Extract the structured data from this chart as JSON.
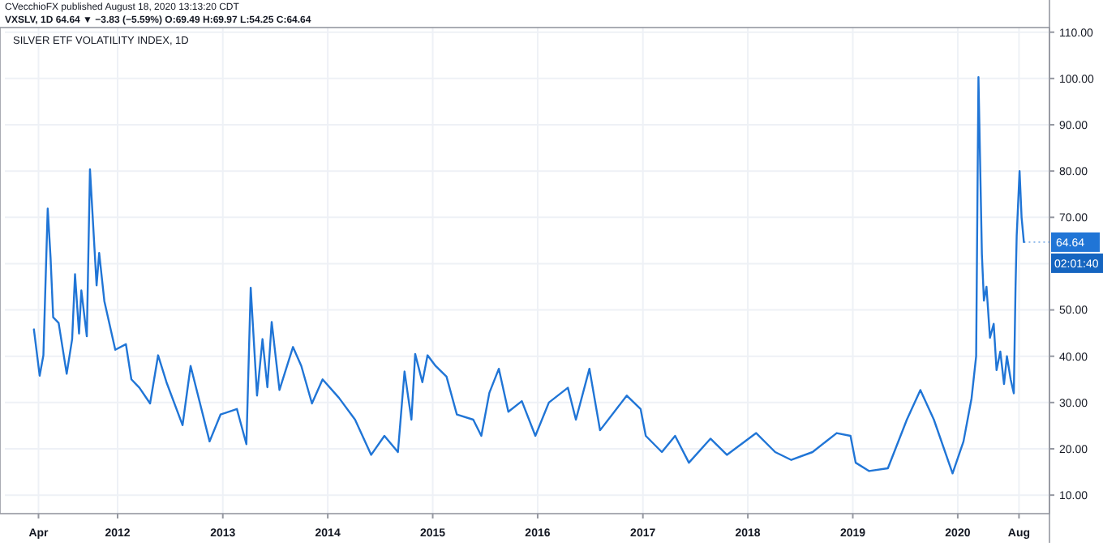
{
  "chart_data": {
    "type": "line",
    "title": "SILVER ETF VOLATILITY INDEX, 1D",
    "subtitle": "CVecchioFX published August 18, 2020 13:13:20 CDT",
    "annotations": [
      "VXSLV, 1D 64.64 ▼ −3.83 (−5.59%) O:69.49 H:69.97 L:54.25 C:64.64",
      {
        "text": "64.64",
        "x": "2020-08-18",
        "y": 64.64
      },
      "02:01:40"
    ],
    "x": [
      "2011-03-16",
      "2011-04-05",
      "2011-04-18",
      "2011-05-03",
      "2011-05-13",
      "2011-05-22",
      "2011-06-10",
      "2011-07-08",
      "2011-07-27",
      "2011-08-06",
      "2011-08-20",
      "2011-08-28",
      "2011-09-16",
      "2011-09-27",
      "2011-10-20",
      "2011-10-29",
      "2011-11-16",
      "2011-12-24",
      "2012-01-30",
      "2012-02-18",
      "2012-03-17",
      "2012-04-23",
      "2012-05-21",
      "2012-06-19",
      "2012-08-14",
      "2012-09-11",
      "2012-11-16",
      "2012-12-24",
      "2013-02-19",
      "2013-03-24",
      "2013-04-08",
      "2013-04-30",
      "2013-05-19",
      "2013-06-05",
      "2013-06-20",
      "2013-07-17",
      "2013-09-02",
      "2013-10-01",
      "2013-11-07",
      "2013-12-14",
      "2014-02-09",
      "2014-04-06",
      "2014-06-01",
      "2014-07-17",
      "2014-09-02",
      "2014-09-25",
      "2014-10-19",
      "2014-11-01",
      "2014-11-26",
      "2014-12-14",
      "2015-01-11",
      "2015-02-18",
      "2015-03-26",
      "2015-05-22",
      "2015-06-19",
      "2015-07-17",
      "2015-08-19",
      "2015-09-21",
      "2015-11-07",
      "2015-12-24",
      "2016-02-09",
      "2016-04-15",
      "2016-05-13",
      "2016-06-29",
      "2016-08-05",
      "2016-11-06",
      "2016-12-24",
      "2017-01-11",
      "2017-03-08",
      "2017-04-23",
      "2017-06-10",
      "2017-08-24",
      "2017-10-20",
      "2018-01-30",
      "2018-04-06",
      "2018-06-01",
      "2018-08-14",
      "2018-11-06",
      "2018-12-24",
      "2019-01-11",
      "2019-02-27",
      "2019-05-03",
      "2019-07-08",
      "2019-08-24",
      "2019-10-10",
      "2019-12-14",
      "2020-01-21",
      "2020-02-18",
      "2020-03-05",
      "2020-03-13",
      "2020-03-25",
      "2020-04-01",
      "2020-04-10",
      "2020-04-22",
      "2020-05-05",
      "2020-05-15",
      "2020-05-28",
      "2020-06-10",
      "2020-06-20",
      "2020-07-03",
      "2020-07-14",
      "2020-07-20",
      "2020-07-24",
      "2020-08-03",
      "2020-08-10",
      "2020-08-18"
    ],
    "series": [
      {
        "color": "#2075d6",
        "values": [
          45.8,
          35.8,
          40.2,
          71.9,
          61.2,
          48.4,
          47.2,
          36.2,
          43.7,
          57.7,
          44.9,
          54.2,
          44.3,
          80.4,
          55.3,
          62.3,
          51.9,
          41.4,
          42.6,
          35,
          33.2,
          29.8,
          40.2,
          34.4,
          25.1,
          37.9,
          21.6,
          27.4,
          28.6,
          21,
          54.8,
          31.5,
          43.7,
          33.3,
          47.4,
          32.7,
          42,
          37.9,
          29.8,
          35,
          31,
          26.3,
          18.7,
          22.8,
          19.3,
          36.7,
          26.3,
          40.5,
          34.4,
          40.2,
          37.9,
          35.6,
          27.4,
          26.3,
          22.8,
          32.1,
          37.3,
          28,
          30.3,
          22.8,
          30,
          33.2,
          26.3,
          37.3,
          24,
          31.5,
          28.6,
          22.8,
          19.3,
          22.8,
          17,
          22.2,
          18.7,
          23.4,
          19.3,
          17.6,
          19.3,
          23.4,
          22.8,
          17,
          15.2,
          15.8,
          26.3,
          32.7,
          26.3,
          14.7,
          21.6,
          30.9,
          40,
          100.3,
          62,
          52,
          55,
          44,
          47,
          37,
          41,
          34,
          40,
          35,
          32,
          55,
          66,
          80,
          70,
          64.64
        ]
      }
    ],
    "xlim": [
      "2010-12-05",
      "2020-11-15"
    ],
    "xticks": [
      {
        "value": "2011-04-01",
        "label": "Apr"
      },
      {
        "value": "2012-01-01",
        "label": "2012"
      },
      {
        "value": "2013-01-01",
        "label": "2013"
      },
      {
        "value": "2014-01-01",
        "label": "2014"
      },
      {
        "value": "2015-01-01",
        "label": "2015"
      },
      {
        "value": "2016-01-01",
        "label": "2016"
      },
      {
        "value": "2017-01-01",
        "label": "2017"
      },
      {
        "value": "2018-01-01",
        "label": "2018"
      },
      {
        "value": "2019-01-01",
        "label": "2019"
      },
      {
        "value": "2020-01-01",
        "label": "2020"
      },
      {
        "value": "2020-08-01",
        "label": "Aug"
      }
    ],
    "ylim": [
      6,
      111
    ],
    "yticks": [
      {
        "value": 10,
        "label": "10.00"
      },
      {
        "value": 20,
        "label": "20.00"
      },
      {
        "value": 30,
        "label": "30.00"
      },
      {
        "value": 40,
        "label": "40.00"
      },
      {
        "value": 50,
        "label": "50.00"
      },
      {
        "value": 60,
        "label": null
      },
      {
        "value": 70,
        "label": "70.00"
      },
      {
        "value": 80,
        "label": "80.00"
      },
      {
        "value": 90,
        "label": "90.00"
      },
      {
        "value": 100,
        "label": "100.00"
      },
      {
        "value": 110,
        "label": "110.00"
      }
    ],
    "grid": true,
    "marker": "none",
    "line_style": "solid"
  }
}
